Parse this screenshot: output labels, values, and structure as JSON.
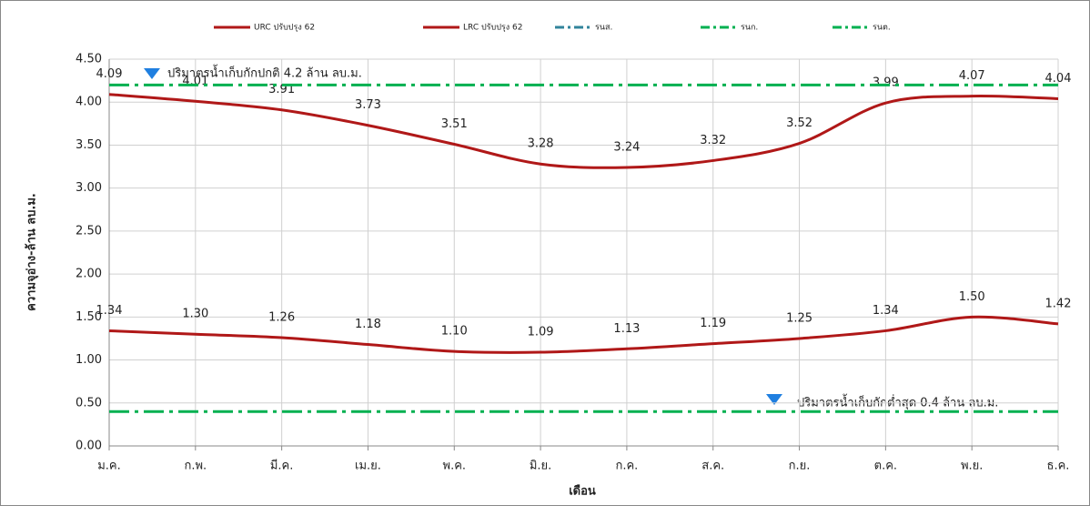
{
  "chart_data": {
    "type": "line",
    "categories": [
      "ม.ค.",
      "ก.พ.",
      "มี.ค.",
      "เม.ย.",
      "พ.ค.",
      "มิ.ย.",
      "ก.ค.",
      "ส.ค.",
      "ก.ย.",
      "ต.ค.",
      "พ.ย.",
      "ธ.ค."
    ],
    "x_label": "เดือน",
    "y_label": "ความจุอ่าง-ล้าน ลบ.ม.",
    "ylim": [
      0,
      4.5
    ],
    "yticks": [
      {
        "value": 0,
        "label": "0.00"
      },
      {
        "value": 0.5,
        "label": "0.50"
      },
      {
        "value": 1,
        "label": "1.00"
      },
      {
        "value": 1.5,
        "label": "1.50"
      },
      {
        "value": 2,
        "label": "2.00"
      },
      {
        "value": 2.5,
        "label": "2.50"
      },
      {
        "value": 3,
        "label": "3.00"
      },
      {
        "value": 3.5,
        "label": "3.50"
      },
      {
        "value": 4,
        "label": "4.00"
      },
      {
        "value": 4.5,
        "label": "4.50"
      }
    ],
    "grid": true,
    "legend": "top",
    "series": [
      {
        "name": "URC ปรับปรุง 62",
        "color": "#b01818",
        "style": "solid",
        "smooth": true,
        "values": [
          4.09,
          4.01,
          3.91,
          3.73,
          3.51,
          3.28,
          3.24,
          3.32,
          3.52,
          3.99,
          4.07,
          4.04
        ],
        "value_labels": [
          "4.09",
          "4.01",
          "3.91",
          "3.73",
          "3.51",
          "3.28",
          "3.24",
          "3.32",
          "3.52",
          "3.99",
          "4.07",
          "4.04"
        ]
      },
      {
        "name": "LRC ปรับปรุง 62",
        "color": "#b01818",
        "style": "solid",
        "smooth": true,
        "values": [
          1.34,
          1.3,
          1.26,
          1.18,
          1.1,
          1.09,
          1.13,
          1.19,
          1.25,
          1.34,
          1.5,
          1.42
        ],
        "value_labels": [
          "1.34",
          "1.30",
          "1.26",
          "1.18",
          "1.10",
          "1.09",
          "1.13",
          "1.19",
          "1.25",
          "1.34",
          "1.50",
          "1.42"
        ]
      },
      {
        "name": "รนส.",
        "color": "#31849b",
        "style": "dashdot",
        "values": [
          null,
          null,
          null,
          null,
          null,
          null,
          null,
          null,
          null,
          null,
          null,
          null
        ]
      },
      {
        "name": "รนก.",
        "color": "#00b050",
        "style": "dashdot",
        "values": [
          4.2,
          4.2,
          4.2,
          4.2,
          4.2,
          4.2,
          4.2,
          4.2,
          4.2,
          4.2,
          4.2,
          4.2
        ]
      },
      {
        "name": "รนต.",
        "color": "#00b050",
        "style": "dashdot",
        "values": [
          0.4,
          0.4,
          0.4,
          0.4,
          0.4,
          0.4,
          0.4,
          0.4,
          0.4,
          0.4,
          0.4,
          0.4
        ]
      }
    ],
    "annotations": [
      "ปริมาตรน้ำเก็บกักปกติ 4.2 ล้าน ลบ.ม.",
      "ปริมาตรน้ำเก็บกักต่ำสุด 0.4 ล้าน ลบ.ม."
    ]
  }
}
